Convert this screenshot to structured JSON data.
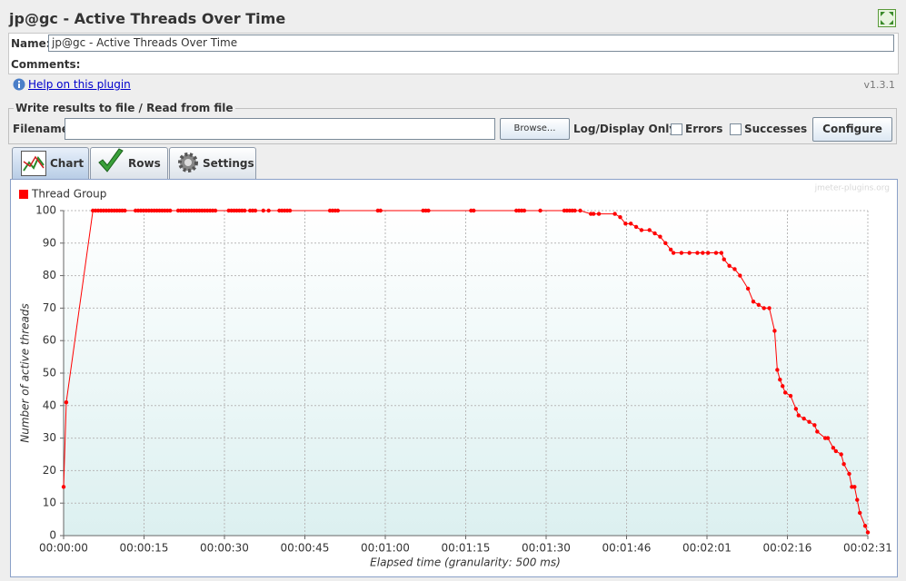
{
  "header": {
    "title": "jp@gc - Active Threads Over Time"
  },
  "form": {
    "name_label": "Name:",
    "name_value": "jp@gc - Active Threads Over Time",
    "comments_label": "Comments:",
    "help_link": "Help on this plugin",
    "version": "v1.3.1"
  },
  "file_panel": {
    "legend": "Write results to file / Read from file",
    "filename_label": "Filename",
    "browse": "Browse...",
    "log_label": "Log/Display Only:",
    "errors": "Errors",
    "successes": "Successes",
    "configure": "Configure"
  },
  "tabs": [
    "Chart",
    "Rows",
    "Settings"
  ],
  "chart_data": {
    "type": "line",
    "watermark": "jmeter-plugins.org",
    "x_label": "Elapsed time (granularity: 500 ms)",
    "y_label": "Number of active threads",
    "x": [
      0,
      0.5,
      5.5,
      6,
      6.5,
      7,
      7.5,
      8,
      8.5,
      9,
      9.5,
      10,
      10.5,
      11,
      11.5,
      13.5,
      14,
      14.5,
      15,
      15.5,
      16,
      16.5,
      17,
      17.5,
      18,
      18.5,
      19,
      19.5,
      20,
      21.5,
      22,
      22.5,
      23,
      23.5,
      24,
      24.5,
      25,
      25.5,
      26,
      26.5,
      27,
      27.5,
      28,
      28.5,
      31,
      31.5,
      32,
      32.5,
      33,
      33.5,
      34,
      35,
      35.5,
      36,
      37.5,
      38.5,
      40.5,
      41,
      41.5,
      42,
      42.5,
      50,
      50.5,
      51,
      51.5,
      59,
      59.5,
      67.5,
      68,
      68.5,
      76.5,
      77,
      85,
      85.5,
      86,
      86.5,
      89.5,
      94,
      94.5,
      95,
      95.5,
      96,
      97,
      99,
      99.5,
      100.5,
      103.5,
      104.5,
      105.5,
      106.5,
      107.5,
      108.5,
      110,
      111,
      112,
      113,
      114,
      114.5,
      116,
      117.5,
      119,
      120,
      121,
      122.5,
      123.5,
      124,
      125,
      126,
      127,
      128.5,
      129.5,
      130.5,
      131.5,
      132.5,
      133.5,
      134,
      134.5,
      135,
      135.5,
      136.5,
      137.5,
      138,
      139,
      140,
      141,
      141.5,
      143,
      143.5,
      144.5,
      145,
      146,
      146.5,
      147.5,
      148,
      148.5,
      149,
      149.5,
      150.5,
      151
    ],
    "series": [
      {
        "name": "Thread Group",
        "color": "#ff0000",
        "values": [
          15,
          41,
          100,
          100,
          100,
          100,
          100,
          100,
          100,
          100,
          100,
          100,
          100,
          100,
          100,
          100,
          100,
          100,
          100,
          100,
          100,
          100,
          100,
          100,
          100,
          100,
          100,
          100,
          100,
          100,
          100,
          100,
          100,
          100,
          100,
          100,
          100,
          100,
          100,
          100,
          100,
          100,
          100,
          100,
          100,
          100,
          100,
          100,
          100,
          100,
          100,
          100,
          100,
          100,
          100,
          100,
          100,
          100,
          100,
          100,
          100,
          100,
          100,
          100,
          100,
          100,
          100,
          100,
          100,
          100,
          100,
          100,
          100,
          100,
          100,
          100,
          100,
          100,
          100,
          100,
          100,
          100,
          100,
          99,
          99,
          99,
          99,
          98,
          96,
          96,
          95,
          94,
          94,
          93,
          92,
          90,
          88,
          87,
          87,
          87,
          87,
          87,
          87,
          87,
          87,
          85,
          83,
          82,
          80,
          76,
          72,
          71,
          70,
          70,
          63,
          51,
          48,
          46,
          44,
          43,
          39,
          37,
          36,
          35,
          34,
          32,
          30,
          30,
          27,
          26,
          25,
          22,
          19,
          15,
          15,
          11,
          7,
          3,
          1
        ]
      }
    ],
    "xlim": [
      0,
      151
    ],
    "xticks": [
      {
        "value": 0,
        "label": "00:00:00"
      },
      {
        "value": 15.1,
        "label": "00:00:15"
      },
      {
        "value": 30.2,
        "label": "00:00:30"
      },
      {
        "value": 45.3,
        "label": "00:00:45"
      },
      {
        "value": 60.4,
        "label": "00:01:00"
      },
      {
        "value": 75.5,
        "label": "00:01:15"
      },
      {
        "value": 90.6,
        "label": "00:01:30"
      },
      {
        "value": 105.7,
        "label": "00:01:46"
      },
      {
        "value": 120.8,
        "label": "00:02:01"
      },
      {
        "value": 135.9,
        "label": "00:02:16"
      },
      {
        "value": 151,
        "label": "00:02:31"
      }
    ],
    "ylim": [
      0,
      100
    ],
    "yticks": [
      0,
      10,
      20,
      30,
      40,
      50,
      60,
      70,
      80,
      90,
      100
    ],
    "grid": true,
    "legend": "top-left"
  }
}
